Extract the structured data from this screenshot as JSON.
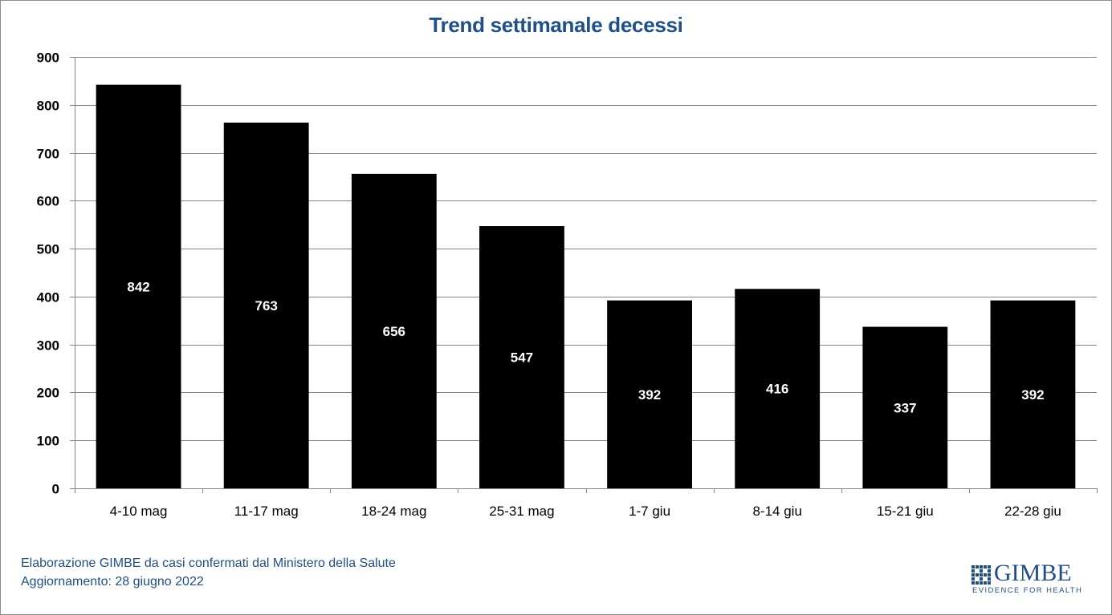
{
  "chart_data": {
    "type": "bar",
    "title": "Trend settimanale decessi",
    "xlabel": "",
    "ylabel": "",
    "categories": [
      "4-10 mag",
      "11-17 mag",
      "18-24 mag",
      "25-31 mag",
      "1-7 giu",
      "8-14 giu",
      "15-21 giu",
      "22-28 giu"
    ],
    "values": [
      842,
      763,
      656,
      547,
      392,
      416,
      337,
      392
    ],
    "data_labels": [
      "842",
      "763",
      "656",
      "547",
      "392",
      "416",
      "337",
      "392"
    ],
    "ylim": [
      0,
      900
    ],
    "yticks": [
      0,
      100,
      200,
      300,
      400,
      500,
      600,
      700,
      800,
      900
    ],
    "ytick_labels": [
      "0",
      "100",
      "200",
      "300",
      "400",
      "500",
      "600",
      "700",
      "800",
      "900"
    ],
    "grid": true,
    "legend": "none",
    "colors": {
      "bar": "#000000",
      "data_label": "#ffffff",
      "grid": "#868686",
      "title": "#1f4e8c"
    }
  },
  "footer": {
    "line1": "Elaborazione GIMBE da casi confermati dal Ministero della Salute",
    "line2": "Aggiornamento: 28 giugno 2022"
  },
  "logo": {
    "name": "GIMBE",
    "tagline": "EVIDENCE FOR HEALTH",
    "icon": "gimbe-grid-icon"
  }
}
